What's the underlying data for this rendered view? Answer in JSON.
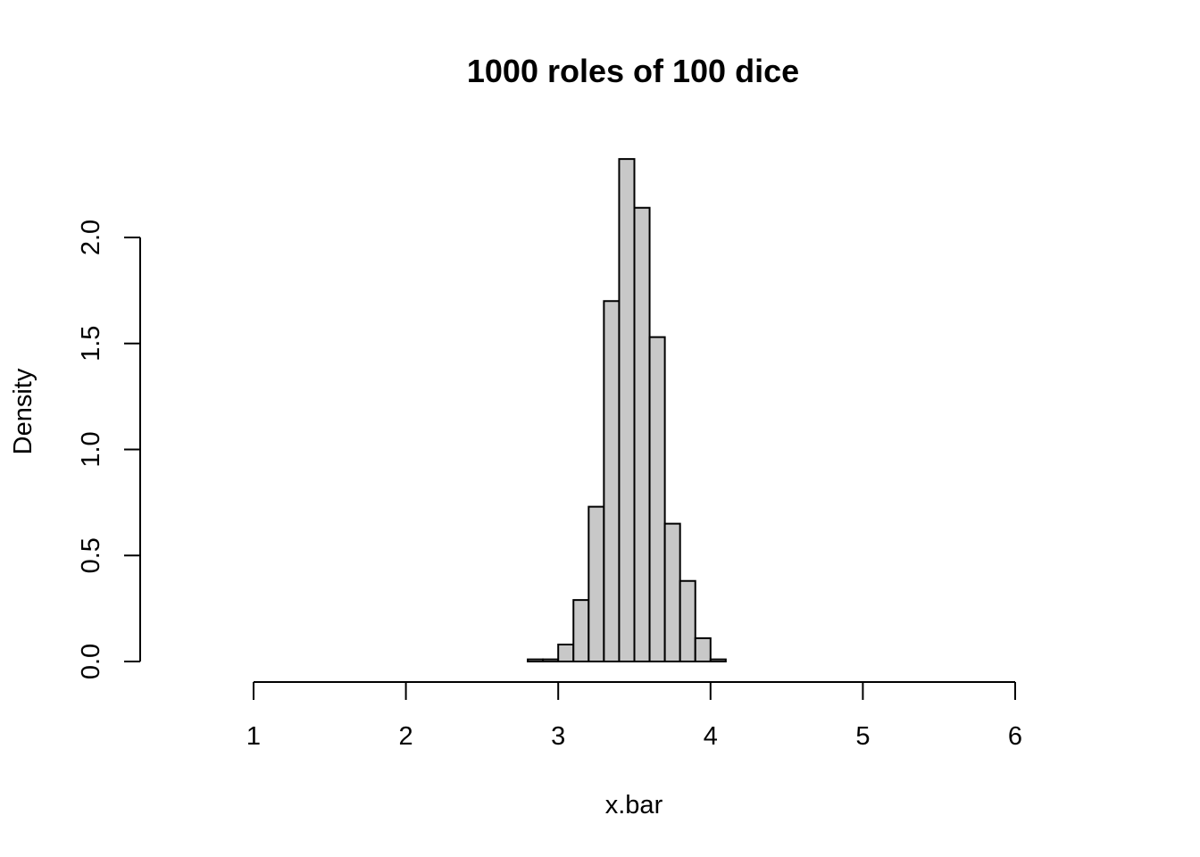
{
  "chart_data": {
    "type": "bar",
    "title": "1000  roles of 100 dice",
    "xlabel": "x.bar",
    "ylabel": "Density",
    "xlim": [
      1,
      6
    ],
    "ylim": [
      0,
      2.0
    ],
    "x_ticks": [
      "1",
      "2",
      "3",
      "4",
      "5",
      "6"
    ],
    "y_ticks": [
      "0.0",
      "0.5",
      "1.0",
      "1.5",
      "2.0"
    ],
    "bin_width": 0.1,
    "bins": [
      {
        "x_start": 2.8,
        "x_end": 2.9,
        "density": 0.01
      },
      {
        "x_start": 2.9,
        "x_end": 3.0,
        "density": 0.01
      },
      {
        "x_start": 3.0,
        "x_end": 3.1,
        "density": 0.08
      },
      {
        "x_start": 3.1,
        "x_end": 3.2,
        "density": 0.29
      },
      {
        "x_start": 3.2,
        "x_end": 3.3,
        "density": 0.73
      },
      {
        "x_start": 3.3,
        "x_end": 3.4,
        "density": 1.7
      },
      {
        "x_start": 3.4,
        "x_end": 3.5,
        "density": 2.37
      },
      {
        "x_start": 3.5,
        "x_end": 3.6,
        "density": 2.14
      },
      {
        "x_start": 3.6,
        "x_end": 3.7,
        "density": 1.53
      },
      {
        "x_start": 3.7,
        "x_end": 3.8,
        "density": 0.65
      },
      {
        "x_start": 3.8,
        "x_end": 3.9,
        "density": 0.38
      },
      {
        "x_start": 3.9,
        "x_end": 4.0,
        "density": 0.11
      },
      {
        "x_start": 4.0,
        "x_end": 4.1,
        "density": 0.01
      }
    ],
    "bar_color": "#c8c8c8",
    "grid": false,
    "legend": "none"
  }
}
